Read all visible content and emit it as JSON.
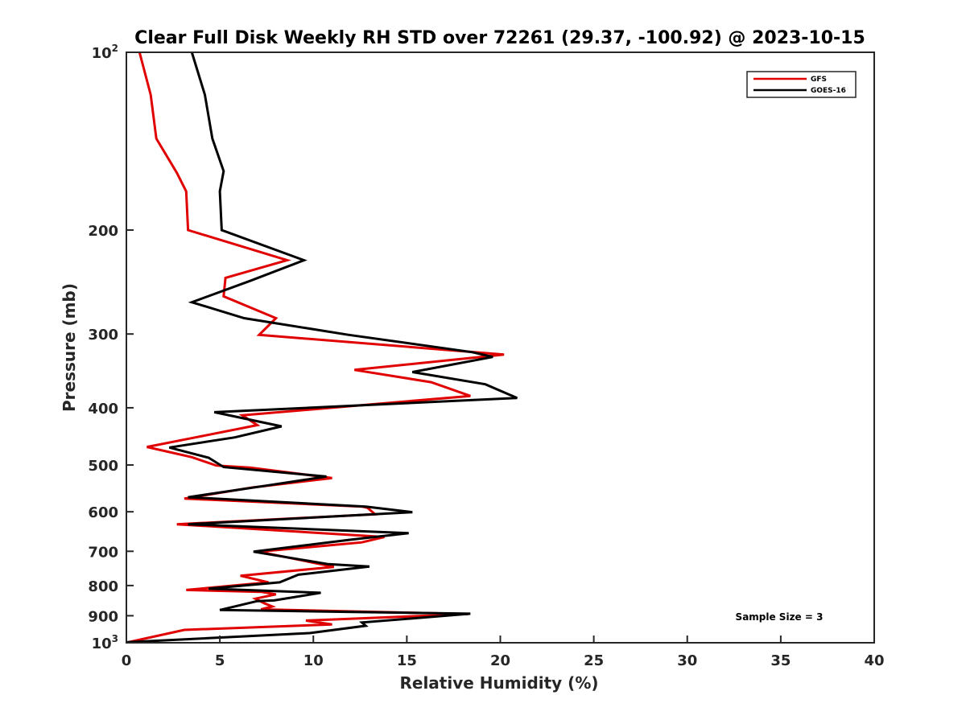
{
  "chart_data": {
    "type": "line",
    "title": "Clear Full Disk Weekly RH STD over 72261 (29.37, -100.92) @ 2023-10-15",
    "xlabel": "Relative Humidity (%)",
    "ylabel": "Pressure (mb)",
    "xlim": [
      0,
      40
    ],
    "ylim": [
      100,
      1000
    ],
    "y_scale": "log",
    "y_reversed": true,
    "grid": false,
    "legend_position": "top-right",
    "x_ticks": [
      {
        "value": 0,
        "label": "0"
      },
      {
        "value": 5,
        "label": "5"
      },
      {
        "value": 10,
        "label": "10"
      },
      {
        "value": 15,
        "label": "15"
      },
      {
        "value": 20,
        "label": "20"
      },
      {
        "value": 25,
        "label": "25"
      },
      {
        "value": 30,
        "label": "30"
      },
      {
        "value": 35,
        "label": "35"
      },
      {
        "value": 40,
        "label": "40"
      }
    ],
    "y_ticks": [
      {
        "value": 100,
        "base": "10",
        "exp": "2"
      },
      {
        "value": 200,
        "base": "200",
        "exp": ""
      },
      {
        "value": 300,
        "base": "300",
        "exp": ""
      },
      {
        "value": 400,
        "base": "400",
        "exp": ""
      },
      {
        "value": 500,
        "base": "500",
        "exp": ""
      },
      {
        "value": 600,
        "base": "600",
        "exp": ""
      },
      {
        "value": 700,
        "base": "700",
        "exp": ""
      },
      {
        "value": 800,
        "base": "800",
        "exp": ""
      },
      {
        "value": 900,
        "base": "900",
        "exp": ""
      },
      {
        "value": 1000,
        "base": "10",
        "exp": "3"
      }
    ],
    "annotation": "Sample Size = 3",
    "series": [
      {
        "name": "GFS",
        "color": "#e00000",
        "points": [
          [
            0.7,
            100
          ],
          [
            1.3,
            118
          ],
          [
            1.6,
            140
          ],
          [
            2.7,
            160
          ],
          [
            3.2,
            172
          ],
          [
            3.3,
            200
          ],
          [
            8.6,
            225
          ],
          [
            5.3,
            241
          ],
          [
            5.2,
            259
          ],
          [
            8.0,
            282
          ],
          [
            7.1,
            301
          ],
          [
            20.2,
            325
          ],
          [
            12.2,
            345
          ],
          [
            16.3,
            362
          ],
          [
            18.4,
            382
          ],
          [
            6.2,
            412
          ],
          [
            7.0,
            428
          ],
          [
            3.7,
            449
          ],
          [
            1.1,
            466
          ],
          [
            3.5,
            485
          ],
          [
            4.8,
            501
          ],
          [
            6.6,
            505
          ],
          [
            11.0,
            526
          ],
          [
            6.7,
            546
          ],
          [
            3.1,
            570
          ],
          [
            12.6,
            588
          ],
          [
            12.9,
            591
          ],
          [
            13.3,
            606
          ],
          [
            2.7,
            630
          ],
          [
            13.8,
            662
          ],
          [
            12.6,
            676
          ],
          [
            7.1,
            701
          ],
          [
            11.1,
            744
          ],
          [
            6.1,
            770
          ],
          [
            7.6,
            790
          ],
          [
            3.2,
            814
          ],
          [
            7.2,
            820
          ],
          [
            8.0,
            828
          ],
          [
            6.9,
            842
          ],
          [
            7.4,
            858
          ],
          [
            7.8,
            868
          ],
          [
            7.2,
            878
          ],
          [
            18.3,
            894
          ],
          [
            9.6,
            917
          ],
          [
            11.0,
            931
          ],
          [
            3.1,
            951
          ],
          [
            0.1,
            998
          ]
        ]
      },
      {
        "name": "GOES-16",
        "color": "#000000",
        "points": [
          [
            3.5,
            100
          ],
          [
            4.2,
            118
          ],
          [
            4.6,
            140
          ],
          [
            5.2,
            159
          ],
          [
            5.0,
            172
          ],
          [
            5.1,
            200
          ],
          [
            9.5,
            225
          ],
          [
            6.6,
            244
          ],
          [
            3.5,
            265
          ],
          [
            6.3,
            282
          ],
          [
            11.9,
            301
          ],
          [
            18.5,
            322
          ],
          [
            19.6,
            328
          ],
          [
            15.3,
            348
          ],
          [
            19.2,
            365
          ],
          [
            20.9,
            385
          ],
          [
            4.7,
            407
          ],
          [
            8.3,
            430
          ],
          [
            5.8,
            449
          ],
          [
            2.3,
            467
          ],
          [
            4.4,
            486
          ],
          [
            5.2,
            504
          ],
          [
            10.7,
            523
          ],
          [
            7.3,
            543
          ],
          [
            3.3,
            567
          ],
          [
            12.8,
            588
          ],
          [
            15.3,
            601
          ],
          [
            3.3,
            630
          ],
          [
            15.1,
            652
          ],
          [
            12.0,
            669
          ],
          [
            6.8,
            701
          ],
          [
            10.8,
            736
          ],
          [
            13.0,
            743
          ],
          [
            9.2,
            767
          ],
          [
            8.2,
            790
          ],
          [
            4.4,
            810
          ],
          [
            10.4,
            823
          ],
          [
            7.9,
            848
          ],
          [
            7.0,
            850
          ],
          [
            5.0,
            880
          ],
          [
            18.4,
            893
          ],
          [
            12.6,
            924
          ],
          [
            12.8,
            936
          ],
          [
            9.8,
            963
          ],
          [
            0.0,
            998
          ]
        ]
      }
    ]
  }
}
